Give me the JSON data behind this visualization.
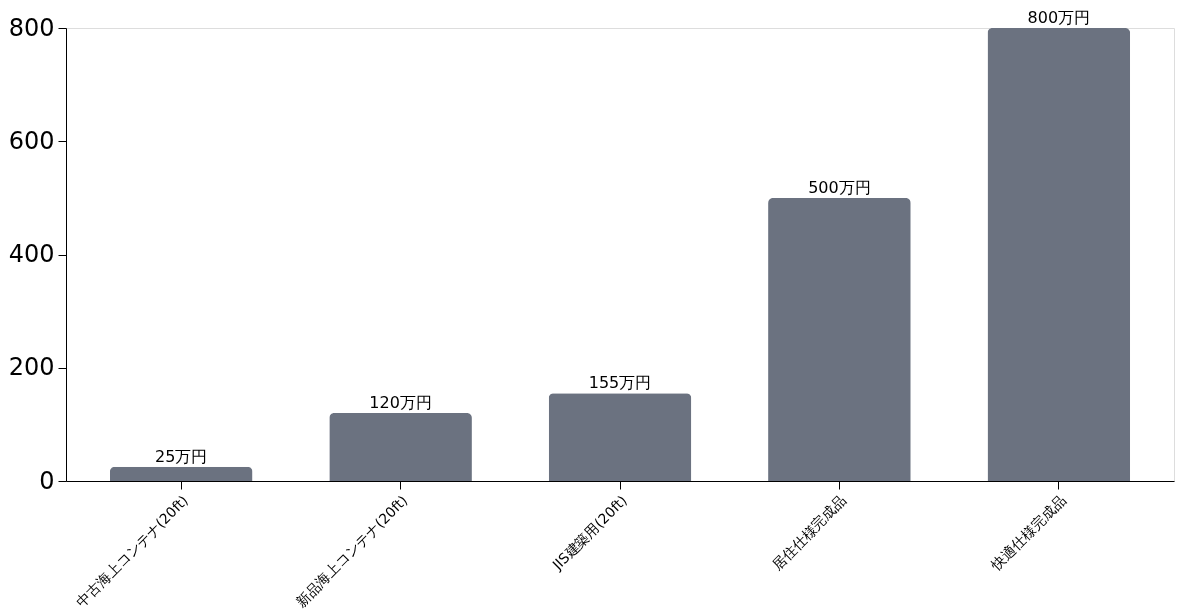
{
  "chart_data": {
    "type": "bar",
    "categories": [
      "中古海上コンテナ(20ft)",
      "新品海上コンテナ(20ft)",
      "JIS建築用(20ft)",
      "居住仕様完成品",
      "快適仕様完成品"
    ],
    "values": [
      25,
      120,
      155,
      500,
      800
    ],
    "value_labels": [
      "25万円",
      "120万円",
      "155万円",
      "500万円",
      "800万円"
    ],
    "color": "#6b7280",
    "ylim": [
      0,
      800
    ],
    "yticks": [
      0,
      200,
      400,
      600,
      800
    ],
    "grid": false
  }
}
